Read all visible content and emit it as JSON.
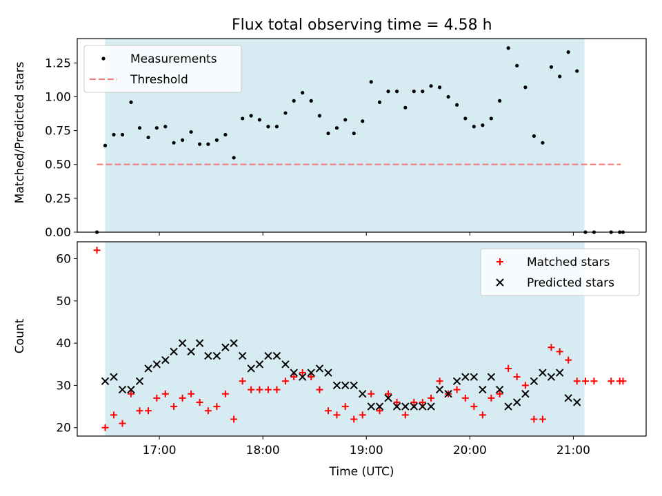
{
  "chart_data": {
    "title": "Flux total observing time = 4.58 h",
    "type": "scatter",
    "x_unit": "minutes since 16:00 UTC",
    "x_ticks": [
      {
        "value": 60,
        "label": "17:00"
      },
      {
        "value": 120,
        "label": "18:00"
      },
      {
        "value": 180,
        "label": "19:00"
      },
      {
        "value": 240,
        "label": "20:00"
      },
      {
        "value": 300,
        "label": "21:00"
      }
    ],
    "xlim": [
      12.4,
      342.2
    ],
    "observing_window": [
      28.6,
      306.4
    ],
    "colors": {
      "band": "#add8e6",
      "measurements": "#000000",
      "threshold": "#f08080",
      "matched": "#ff0000",
      "predicted": "#000000"
    },
    "panels": [
      {
        "id": "ratio",
        "ylabel": "Matched/Predicted stars",
        "xlabel": "",
        "ylim": [
          0,
          1.43
        ],
        "yticks": [
          0,
          0.25,
          0.5,
          0.75,
          1.0,
          1.25
        ],
        "ytick_labels": [
          "0.00",
          "0.25",
          "0.50",
          "0.75",
          "1.00",
          "1.25"
        ],
        "legend": [
          {
            "label": "Measurements",
            "marker": "dot"
          },
          {
            "label": "Threshold",
            "marker": "dashed"
          }
        ],
        "legend_position": "top-left",
        "threshold": {
          "value": 0.5,
          "x_start": 23.8,
          "x_end": 327.5
        },
        "series": [
          {
            "name": "Measurements",
            "x": [
              23.8,
              28.6,
              33.6,
              38.6,
              43.6,
              48.6,
              53.6,
              58.5,
              63.5,
              68.4,
              73.4,
              78.4,
              83.4,
              88.3,
              93.3,
              98.3,
              103.2,
              108.2,
              113.2,
              118.1,
              123.1,
              128.1,
              133.1,
              138.0,
              143.0,
              148.0,
              152.9,
              157.9,
              162.9,
              167.8,
              172.8,
              177.8,
              182.8,
              187.7,
              192.7,
              197.7,
              202.6,
              207.6,
              212.6,
              217.5,
              222.5,
              227.5,
              232.5,
              237.4,
              242.4,
              247.4,
              252.4,
              257.3,
              262.3,
              267.3,
              272.2,
              277.2,
              282.2,
              287.2,
              292.1,
              297.1,
              302.1,
              307.0,
              312.0,
              321.9,
              326.9,
              328.8
            ],
            "y": [
              0.0,
              0.64,
              0.72,
              0.72,
              0.96,
              0.77,
              0.7,
              0.77,
              0.78,
              0.66,
              0.68,
              0.74,
              0.65,
              0.65,
              0.68,
              0.72,
              0.55,
              0.84,
              0.86,
              0.83,
              0.78,
              0.78,
              0.88,
              0.97,
              1.03,
              0.97,
              0.86,
              0.73,
              0.77,
              0.83,
              0.73,
              0.82,
              1.11,
              0.96,
              1.04,
              1.04,
              0.92,
              1.04,
              1.04,
              1.08,
              1.07,
              1.0,
              0.94,
              0.84,
              0.78,
              0.79,
              0.84,
              0.97,
              1.36,
              1.23,
              1.07,
              0.71,
              0.66,
              1.22,
              1.15,
              1.33,
              1.19,
              0.0,
              0.0,
              0.0,
              0.0,
              0.0
            ]
          }
        ]
      },
      {
        "id": "counts",
        "ylabel": "Count",
        "xlabel": "Time (UTC)",
        "ylim": [
          18.0,
          64.0
        ],
        "yticks": [
          20,
          30,
          40,
          50,
          60
        ],
        "ytick_labels": [
          "20",
          "30",
          "40",
          "50",
          "60"
        ],
        "legend": [
          {
            "label": "Matched stars",
            "marker": "plus"
          },
          {
            "label": "Predicted stars",
            "marker": "x"
          }
        ],
        "legend_position": "top-right",
        "series": [
          {
            "name": "Matched stars",
            "x": [
              23.8,
              28.6,
              33.6,
              38.6,
              43.6,
              48.6,
              53.6,
              58.5,
              63.5,
              68.4,
              73.4,
              78.4,
              83.4,
              88.3,
              93.3,
              98.3,
              103.2,
              108.2,
              113.2,
              118.1,
              123.1,
              128.1,
              133.1,
              138.0,
              143.0,
              148.0,
              152.9,
              157.9,
              162.9,
              167.8,
              172.8,
              177.8,
              182.8,
              187.7,
              192.7,
              197.7,
              202.6,
              207.6,
              212.6,
              217.5,
              222.5,
              227.5,
              232.5,
              237.4,
              242.4,
              247.4,
              252.4,
              257.3,
              262.3,
              267.3,
              272.2,
              277.2,
              282.2,
              287.2,
              292.1,
              297.1,
              302.1,
              307.0,
              312.0,
              321.9,
              326.9,
              328.8
            ],
            "y": [
              62,
              20,
              23,
              21,
              28,
              24,
              24,
              27,
              28,
              25,
              27,
              28,
              26,
              24,
              25,
              28,
              22,
              31,
              29,
              29,
              29,
              29,
              31,
              32,
              33,
              32,
              29,
              24,
              23,
              25,
              22,
              23,
              28,
              24,
              28,
              26,
              23,
              26,
              26,
              27,
              31,
              28,
              29,
              27,
              25,
              23,
              27,
              28,
              34,
              32,
              30,
              22,
              22,
              39,
              38,
              36,
              31,
              31,
              31,
              31,
              31,
              31
            ]
          },
          {
            "name": "Predicted stars",
            "x": [
              28.6,
              33.6,
              38.6,
              43.6,
              48.6,
              53.6,
              58.5,
              63.5,
              68.4,
              73.4,
              78.4,
              83.4,
              88.3,
              93.3,
              98.3,
              103.2,
              108.2,
              113.2,
              118.1,
              123.1,
              128.1,
              133.1,
              138.0,
              143.0,
              148.0,
              152.9,
              157.9,
              162.9,
              167.8,
              172.8,
              177.8,
              182.8,
              187.7,
              192.7,
              197.7,
              202.6,
              207.6,
              212.6,
              217.5,
              222.5,
              227.5,
              232.5,
              237.4,
              242.4,
              247.4,
              252.4,
              257.3,
              262.3,
              267.3,
              272.2,
              277.2,
              282.2,
              287.2,
              292.1,
              297.1,
              302.1
            ],
            "y": [
              31,
              32,
              29,
              29,
              31,
              34,
              35,
              36,
              38,
              40,
              38,
              40,
              37,
              37,
              39,
              40,
              37,
              34,
              35,
              37,
              37,
              35,
              33,
              32,
              33,
              34,
              33,
              30,
              30,
              30,
              28,
              25,
              25,
              27,
              25,
              25,
              25,
              25,
              25,
              29,
              28,
              31,
              32,
              32,
              29,
              32,
              29,
              25,
              26,
              28,
              31,
              33,
              32,
              33,
              27,
              26
            ]
          }
        ]
      }
    ]
  }
}
